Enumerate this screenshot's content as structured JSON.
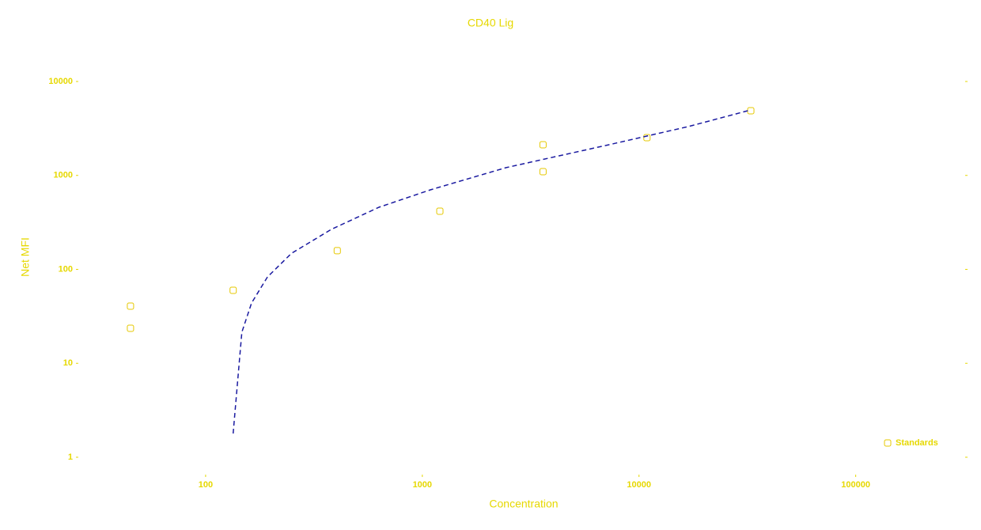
{
  "chart_data": {
    "type": "scatter",
    "title": "CD40 Lig",
    "x_label": "Concentration",
    "y_label": "Net MFI",
    "xlog": true,
    "ylog": true,
    "xlim": [
      25,
      320000
    ],
    "ylim": [
      1,
      10000
    ],
    "xticks": [
      100,
      1000,
      10000,
      100000
    ],
    "yticks": [
      1,
      10,
      100,
      1000,
      10000
    ],
    "legend": "lower right",
    "series": [
      {
        "name": "Standards",
        "type": "scatter",
        "color": "#e6c800",
        "x": [
          45,
          45,
          134,
          405,
          1205,
          3606,
          3606,
          10880,
          32800
        ],
        "values": [
          40.6,
          23.6,
          59.8,
          158,
          416,
          1097,
          2120,
          2524,
          4880
        ]
      },
      {
        "type": "line",
        "color": "#1a1aa0",
        "x": [
          134,
          147,
          163,
          193,
          249,
          380,
          631,
          1089,
          2427,
          7260,
          16880,
          31770
        ],
        "values": [
          1.79,
          21.4,
          43.9,
          83,
          148,
          266,
          458,
          702,
          1208,
          2120,
          3313,
          4880
        ]
      }
    ]
  }
}
